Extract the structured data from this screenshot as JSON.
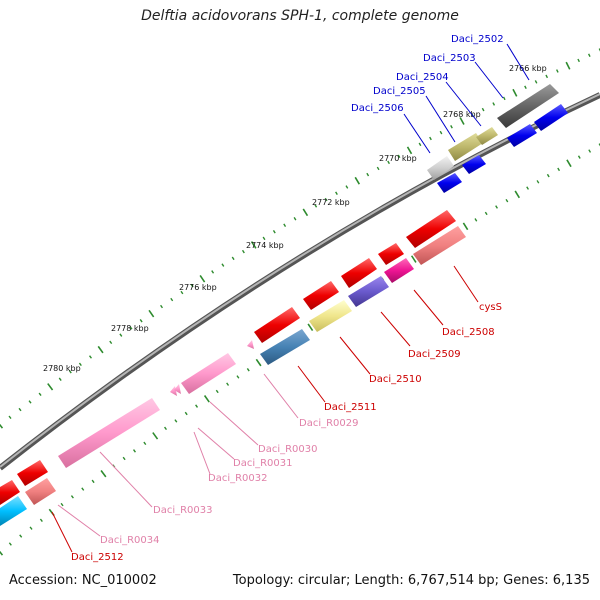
{
  "title": "Delftia acidovorans SPH-1, complete genome",
  "footer": {
    "accession": "Accession: NC_010002",
    "summary": "Topology: circular; Length: 6,767,514 bp; Genes: 6,135"
  },
  "colors": {
    "backbone": "#777777",
    "tick_green": "#2e8b2e",
    "label_blue": "#0000cc",
    "label_red": "#cc0000",
    "label_pink": "#e080a8"
  },
  "ticks": [
    {
      "label": "2766 kbp"
    },
    {
      "label": "2768 kbp"
    },
    {
      "label": "2770 kbp"
    },
    {
      "label": "2772 kbp"
    },
    {
      "label": "2774 kbp"
    },
    {
      "label": "2776 kbp"
    },
    {
      "label": "2778 kbp"
    },
    {
      "label": "2780 kbp"
    }
  ],
  "gene_labels": [
    {
      "name": "Daci_2502",
      "color": "blue"
    },
    {
      "name": "Daci_2503",
      "color": "blue"
    },
    {
      "name": "Daci_2504",
      "color": "blue"
    },
    {
      "name": "Daci_2505",
      "color": "blue"
    },
    {
      "name": "Daci_2506",
      "color": "blue"
    },
    {
      "name": "cysS",
      "color": "red"
    },
    {
      "name": "Daci_2508",
      "color": "red"
    },
    {
      "name": "Daci_2509",
      "color": "red"
    },
    {
      "name": "Daci_2510",
      "color": "red"
    },
    {
      "name": "Daci_2511",
      "color": "red"
    },
    {
      "name": "Daci_R0029",
      "color": "pink"
    },
    {
      "name": "Daci_R0030",
      "color": "pink"
    },
    {
      "name": "Daci_R0031",
      "color": "pink"
    },
    {
      "name": "Daci_R0032",
      "color": "pink"
    },
    {
      "name": "Daci_R0033",
      "color": "pink"
    },
    {
      "name": "Daci_R0034",
      "color": "pink"
    },
    {
      "name": "Daci_2512",
      "color": "red"
    }
  ]
}
